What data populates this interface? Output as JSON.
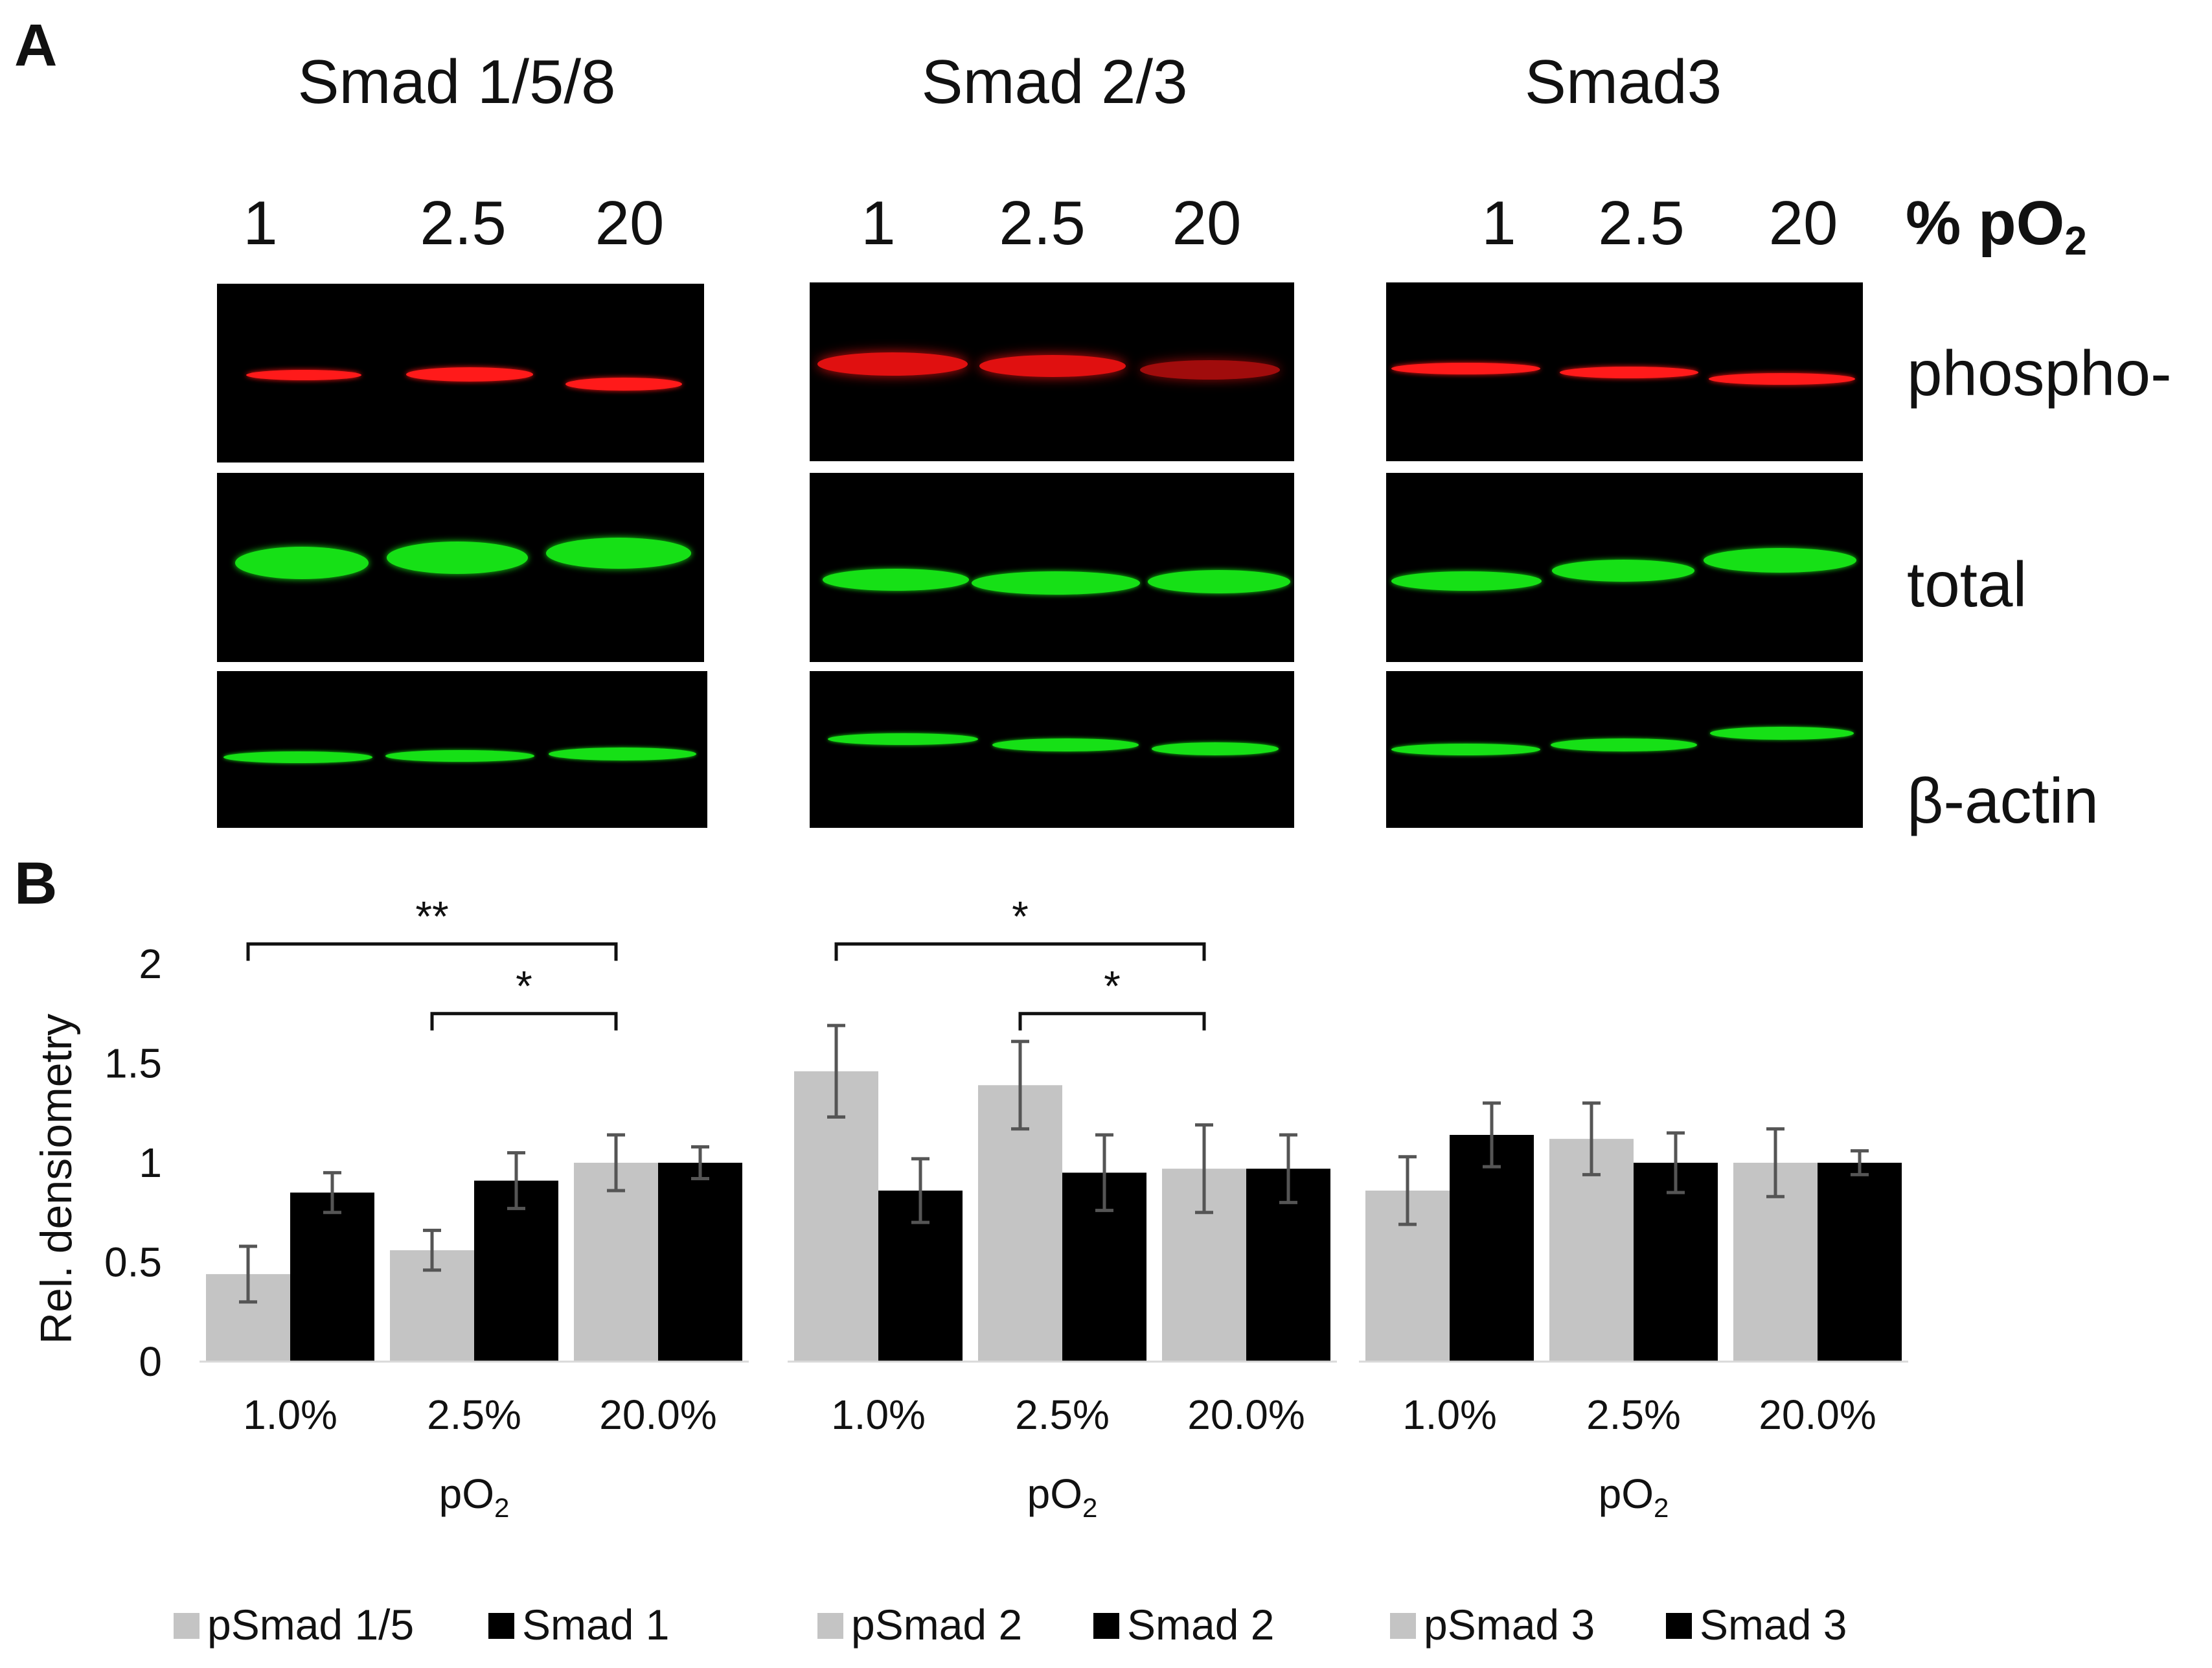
{
  "panel_a": {
    "letter": "A",
    "po2_header": "% pO",
    "po2_sub": "2",
    "row_labels": {
      "phospho": "phospho-",
      "total": "total",
      "actin": "β-actin"
    },
    "gels": [
      {
        "title": "Smad 1/5/8",
        "lanes": [
          "1",
          "2.5",
          "20"
        ]
      },
      {
        "title": "Smad 2/3",
        "lanes": [
          "1",
          "2.5",
          "20"
        ]
      },
      {
        "title": "Smad3",
        "lanes": [
          "1",
          "2.5",
          "20"
        ]
      }
    ],
    "colors": {
      "phospho": "#ff1414",
      "total": "#16e016",
      "background": "#000000"
    }
  },
  "chart_data": {
    "panel_letter": "B",
    "type": "bar",
    "ylabel": "Rel. densiometry",
    "ylim": [
      0,
      2
    ],
    "yticks": [
      "0",
      "0.5",
      "1",
      "1.5",
      "2"
    ],
    "xlabel_prefix": "pO",
    "xlabel_sub": "2",
    "colors": {
      "phospho": "#c4c4c4",
      "total": "#000000"
    },
    "groups": [
      {
        "categories": [
          "1.0%",
          "2.5%",
          "20.0%"
        ],
        "series": [
          {
            "name": "pSmad 1/5",
            "values": [
              0.44,
              0.56,
              1.0
            ],
            "errors": [
              0.14,
              0.1,
              0.14
            ]
          },
          {
            "name": "Smad 1",
            "values": [
              0.85,
              0.91,
              1.0
            ],
            "errors": [
              0.1,
              0.14,
              0.08
            ]
          }
        ],
        "significance": [
          {
            "from": 0,
            "to": 2,
            "label": "**",
            "level": 2.1
          },
          {
            "from": 1,
            "to": 2,
            "label": "*",
            "level": 1.75
          }
        ]
      },
      {
        "categories": [
          "1.0%",
          "2.5%",
          "20.0%"
        ],
        "series": [
          {
            "name": "pSmad 2",
            "values": [
              1.46,
              1.39,
              0.97
            ],
            "errors": [
              0.23,
              0.22,
              0.22
            ]
          },
          {
            "name": "Smad 2",
            "values": [
              0.86,
              0.95,
              0.97
            ],
            "errors": [
              0.16,
              0.19,
              0.17
            ]
          }
        ],
        "significance": [
          {
            "from": 0,
            "to": 2,
            "label": "*",
            "level": 2.1
          },
          {
            "from": 1,
            "to": 2,
            "label": "*",
            "level": 1.75
          }
        ]
      },
      {
        "categories": [
          "1.0%",
          "2.5%",
          "20.0%"
        ],
        "series": [
          {
            "name": "pSmad 3",
            "values": [
              0.86,
              1.12,
              1.0
            ],
            "errors": [
              0.17,
              0.18,
              0.17
            ]
          },
          {
            "name": "Smad 3",
            "values": [
              1.14,
              1.0,
              1.0
            ],
            "errors": [
              0.16,
              0.15,
              0.06
            ]
          }
        ],
        "significance": []
      }
    ]
  }
}
